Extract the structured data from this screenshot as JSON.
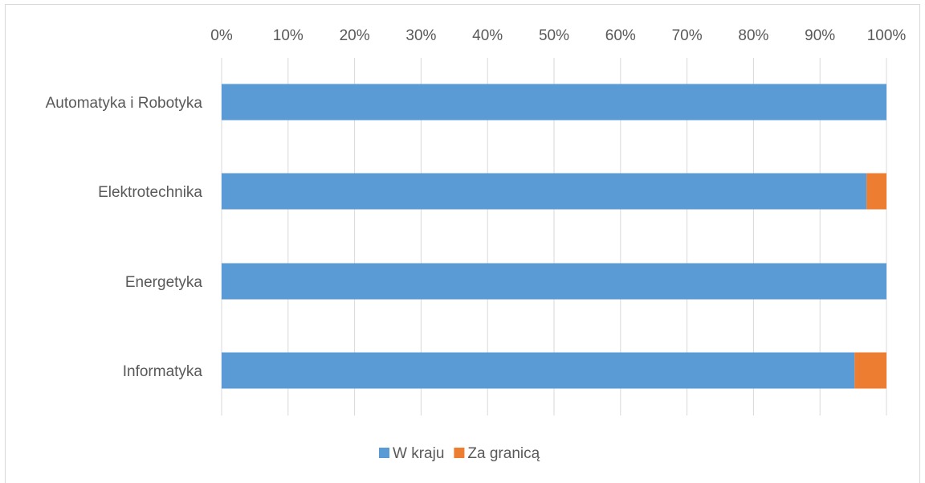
{
  "chart_data": {
    "type": "bar",
    "orientation": "horizontal",
    "stacked": "percent",
    "categories": [
      "Automatyka i Robotyka",
      "Elektrotechnika",
      "Energetyka",
      "Informatyka"
    ],
    "series": [
      {
        "name": "W kraju",
        "color": "#5b9bd5",
        "values": [
          100,
          97,
          100,
          95.2
        ]
      },
      {
        "name": "Za granicą",
        "color": "#ed7d31",
        "values": [
          0,
          3,
          0,
          4.8
        ]
      }
    ],
    "xlim": [
      0,
      100
    ],
    "xticks": [
      "0%",
      "10%",
      "20%",
      "30%",
      "40%",
      "50%",
      "60%",
      "70%",
      "80%",
      "90%",
      "100%"
    ],
    "x_axis_position": "top",
    "grid": "vertical",
    "legend": "bottom"
  }
}
